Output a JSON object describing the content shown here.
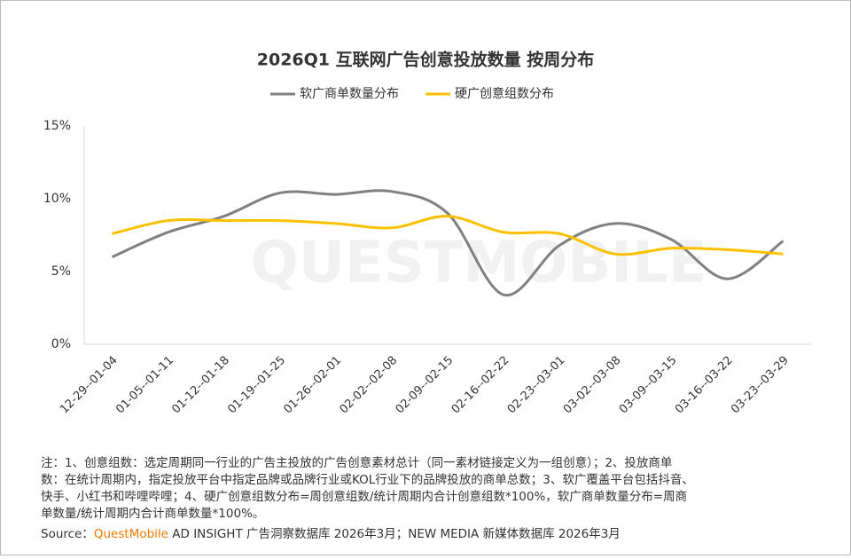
{
  "chart_data": {
    "type": "line",
    "title": "2026Q1 互联网广告创意投放数量 按周分布",
    "categories": [
      "12-29--01-04",
      "01-05--01-11",
      "01-12--01-18",
      "01-19--01-25",
      "01-26--02-01",
      "02-02--02-08",
      "02-09--02-15",
      "02-16--02-22",
      "02-23--03-01",
      "03-02--03-08",
      "03-09--03-15",
      "03-16--03-22",
      "03-23--03-29"
    ],
    "series": [
      {
        "name": "软广商单数量分布",
        "color": "#808080",
        "values": [
          6.0,
          7.7,
          8.8,
          10.4,
          10.3,
          10.5,
          9.0,
          3.4,
          6.8,
          8.3,
          7.2,
          4.5,
          7.1
        ]
      },
      {
        "name": "硬广创意组数分布",
        "color": "#ffc000",
        "values": [
          7.6,
          8.5,
          8.5,
          8.5,
          8.3,
          8.0,
          8.8,
          7.7,
          7.6,
          6.2,
          6.6,
          6.5,
          6.2
        ]
      }
    ],
    "ylim": [
      0,
      15
    ],
    "yticks": [
      {
        "value": 0,
        "label": "0%"
      },
      {
        "value": 5,
        "label": "5%"
      },
      {
        "value": 10,
        "label": "10%"
      },
      {
        "value": 15,
        "label": "15%"
      }
    ],
    "smooth": true,
    "legend": "top",
    "watermark": "QUESTMOBILE",
    "notes": [
      "注：1、创意组数：选定周期同一行业的广告主投放的广告创意素材总计（同一素材链接定义为一组创意）；2、投放商单",
      "数：在统计周期内，指定投放平台中指定品牌或品牌行业或KOL行业下的品牌投放的商单总数；3、软广覆盖平台包括抖音、",
      "快手、小红书和哔哩哔哩；4、硬广创意组数分布=周创意组数/统计周期内合计创意组数*100%，软广商单数量分布=周商",
      "单数量/统计周期内合计商单数量*100%。"
    ],
    "source_label": "Source：",
    "source_brand": "QuestMobile",
    "source_text": " AD INSIGHT 广告洞察数据库 2026年3月；NEW MEDIA 新媒体数据库 2026年3月"
  }
}
